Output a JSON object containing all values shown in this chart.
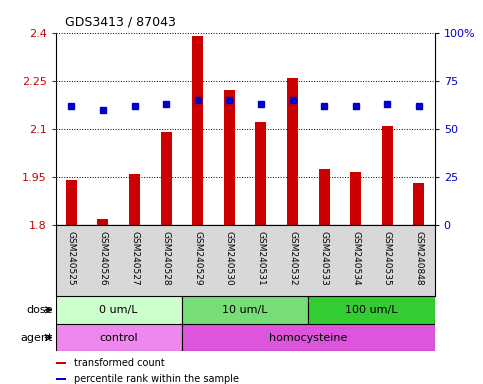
{
  "title": "GDS3413 / 87043",
  "samples": [
    "GSM240525",
    "GSM240526",
    "GSM240527",
    "GSM240528",
    "GSM240529",
    "GSM240530",
    "GSM240531",
    "GSM240532",
    "GSM240533",
    "GSM240534",
    "GSM240535",
    "GSM240848"
  ],
  "bar_values": [
    1.94,
    1.82,
    1.96,
    2.09,
    2.39,
    2.22,
    2.12,
    2.26,
    1.975,
    1.965,
    2.11,
    1.93
  ],
  "dot_values": [
    62,
    60,
    62,
    63,
    65,
    65,
    63,
    65,
    62,
    62,
    63,
    62
  ],
  "ylim": [
    1.8,
    2.4
  ],
  "y2lim": [
    0,
    100
  ],
  "yticks": [
    1.8,
    1.95,
    2.1,
    2.25,
    2.4
  ],
  "y2ticks": [
    0,
    25,
    50,
    75,
    100
  ],
  "ytick_labels": [
    "1.8",
    "1.95",
    "2.1",
    "2.25",
    "2.4"
  ],
  "y2tick_labels": [
    "0",
    "25",
    "50",
    "75",
    "100%"
  ],
  "bar_color": "#cc0000",
  "dot_color": "#0000cc",
  "bar_width": 0.35,
  "dose_groups": [
    {
      "label": "0 um/L",
      "start": 0,
      "end": 4,
      "color": "#ccffcc"
    },
    {
      "label": "10 um/L",
      "start": 4,
      "end": 8,
      "color": "#77dd77"
    },
    {
      "label": "100 um/L",
      "start": 8,
      "end": 12,
      "color": "#33cc33"
    }
  ],
  "agent_groups": [
    {
      "label": "control",
      "start": 0,
      "end": 4,
      "color": "#ee88ee"
    },
    {
      "label": "homocysteine",
      "start": 4,
      "end": 12,
      "color": "#dd55dd"
    }
  ],
  "dose_label": "dose",
  "agent_label": "agent",
  "legend_bar_label": "transformed count",
  "legend_dot_label": "percentile rank within the sample",
  "sample_bg_color": "#d8d8d8",
  "plot_bg": "#ffffff",
  "fig_bg": "#ffffff"
}
